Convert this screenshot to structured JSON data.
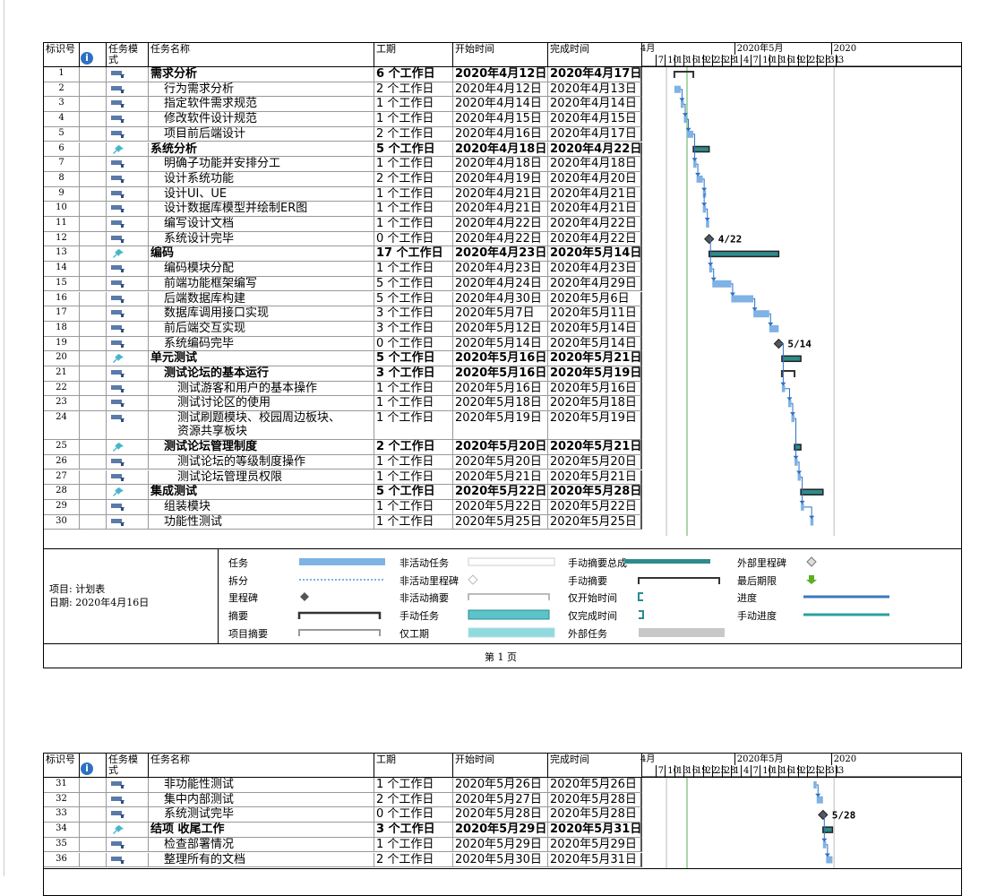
{
  "headers": {
    "id": "标识号",
    "mode": "任务模式",
    "name": "任务名称",
    "duration": "工期",
    "start": "开始时间",
    "finish": "完成时间"
  },
  "timeline": {
    "month_apr": "4月",
    "month_may": "2020年5月",
    "month_next": "2020",
    "days": [
      "7",
      "10",
      "13",
      "16",
      "19",
      "22",
      "25",
      "28",
      "1",
      "4",
      "7",
      "10",
      "13",
      "16",
      "19",
      "22",
      "25",
      "28",
      "31",
      "3"
    ]
  },
  "page1_tasks": [
    {
      "id": "1",
      "indent": 0,
      "bold": true,
      "mode": "auto",
      "name": "需求分析",
      "dur": "6 个工作日",
      "start": "2020年4月12日",
      "end": "2020年4月17日"
    },
    {
      "id": "2",
      "indent": 1,
      "bold": false,
      "mode": "auto",
      "name": "行为需求分析",
      "dur": "2 个工作日",
      "start": "2020年4月12日",
      "end": "2020年4月13日"
    },
    {
      "id": "3",
      "indent": 1,
      "bold": false,
      "mode": "auto",
      "name": "指定软件需求规范",
      "dur": "1 个工作日",
      "start": "2020年4月14日",
      "end": "2020年4月14日"
    },
    {
      "id": "4",
      "indent": 1,
      "bold": false,
      "mode": "auto",
      "name": "修改软件设计规范",
      "dur": "1 个工作日",
      "start": "2020年4月15日",
      "end": "2020年4月15日"
    },
    {
      "id": "5",
      "indent": 1,
      "bold": false,
      "mode": "auto",
      "name": "项目前后端设计",
      "dur": "2 个工作日",
      "start": "2020年4月16日",
      "end": "2020年4月17日"
    },
    {
      "id": "6",
      "indent": 0,
      "bold": true,
      "mode": "manual",
      "name": "系统分析",
      "dur": "5 个工作日",
      "start": "2020年4月18日",
      "end": "2020年4月22日"
    },
    {
      "id": "7",
      "indent": 1,
      "bold": false,
      "mode": "auto",
      "name": "明确子功能并安排分工",
      "dur": "1 个工作日",
      "start": "2020年4月18日",
      "end": "2020年4月18日"
    },
    {
      "id": "8",
      "indent": 1,
      "bold": false,
      "mode": "auto",
      "name": "设计系统功能",
      "dur": "2 个工作日",
      "start": "2020年4月19日",
      "end": "2020年4月20日"
    },
    {
      "id": "9",
      "indent": 1,
      "bold": false,
      "mode": "auto",
      "name": "设计UI、UE",
      "dur": "1 个工作日",
      "start": "2020年4月21日",
      "end": "2020年4月21日"
    },
    {
      "id": "10",
      "indent": 1,
      "bold": false,
      "mode": "auto",
      "name": "设计数据库模型并绘制ER图",
      "dur": "1 个工作日",
      "start": "2020年4月21日",
      "end": "2020年4月21日"
    },
    {
      "id": "11",
      "indent": 1,
      "bold": false,
      "mode": "auto",
      "name": "编写设计文档",
      "dur": "1 个工作日",
      "start": "2020年4月22日",
      "end": "2020年4月22日"
    },
    {
      "id": "12",
      "indent": 1,
      "bold": false,
      "mode": "auto",
      "name": "系统设计完毕",
      "dur": "0 个工作日",
      "start": "2020年4月22日",
      "end": "2020年4月22日"
    },
    {
      "id": "13",
      "indent": 0,
      "bold": true,
      "mode": "manual",
      "name": "编码",
      "dur": "17 个工作日",
      "start": "2020年4月23日",
      "end": "2020年5月14日"
    },
    {
      "id": "14",
      "indent": 1,
      "bold": false,
      "mode": "auto",
      "name": "编码模块分配",
      "dur": "1 个工作日",
      "start": "2020年4月23日",
      "end": "2020年4月23日"
    },
    {
      "id": "15",
      "indent": 1,
      "bold": false,
      "mode": "auto",
      "name": "前端功能框架编写",
      "dur": "5 个工作日",
      "start": "2020年4月24日",
      "end": "2020年4月29日"
    },
    {
      "id": "16",
      "indent": 1,
      "bold": false,
      "mode": "auto",
      "name": "后端数据库构建",
      "dur": "5 个工作日",
      "start": "2020年4月30日",
      "end": "2020年5月6日"
    },
    {
      "id": "17",
      "indent": 1,
      "bold": false,
      "mode": "auto",
      "name": "数据库调用接口实现",
      "dur": "3 个工作日",
      "start": "2020年5月7日",
      "end": "2020年5月11日"
    },
    {
      "id": "18",
      "indent": 1,
      "bold": false,
      "mode": "auto",
      "name": "前后端交互实现",
      "dur": "3 个工作日",
      "start": "2020年5月12日",
      "end": "2020年5月14日"
    },
    {
      "id": "19",
      "indent": 1,
      "bold": false,
      "mode": "auto",
      "name": "系统编码完毕",
      "dur": "0 个工作日",
      "start": "2020年5月14日",
      "end": "2020年5月14日"
    },
    {
      "id": "20",
      "indent": 0,
      "bold": true,
      "mode": "manual",
      "name": "单元测试",
      "dur": "5 个工作日",
      "start": "2020年5月16日",
      "end": "2020年5月21日"
    },
    {
      "id": "21",
      "indent": 1,
      "bold": true,
      "mode": "auto",
      "name": "测试论坛的基本运行",
      "dur": "3 个工作日",
      "start": "2020年5月16日",
      "end": "2020年5月19日"
    },
    {
      "id": "22",
      "indent": 2,
      "bold": false,
      "mode": "auto",
      "name": "测试游客和用户的基本操作",
      "dur": "1 个工作日",
      "start": "2020年5月16日",
      "end": "2020年5月16日"
    },
    {
      "id": "23",
      "indent": 2,
      "bold": false,
      "mode": "auto",
      "name": "测试讨论区的使用",
      "dur": "1 个工作日",
      "start": "2020年5月18日",
      "end": "2020年5月18日"
    },
    {
      "id": "24",
      "indent": 2,
      "bold": false,
      "mode": "auto",
      "name": "测试刷题模块、校园周边板块、",
      "name2": "资源共享板块",
      "dur": "1 个工作日",
      "start": "2020年5月19日",
      "end": "2020年5月19日"
    },
    {
      "id": "25",
      "indent": 1,
      "bold": true,
      "mode": "manual",
      "name": "测试论坛管理制度",
      "dur": "2 个工作日",
      "start": "2020年5月20日",
      "end": "2020年5月21日"
    },
    {
      "id": "26",
      "indent": 2,
      "bold": false,
      "mode": "auto",
      "name": "测试论坛的等级制度操作",
      "dur": "1 个工作日",
      "start": "2020年5月20日",
      "end": "2020年5月20日"
    },
    {
      "id": "27",
      "indent": 2,
      "bold": false,
      "mode": "auto",
      "name": "测试论坛管理员权限",
      "dur": "1 个工作日",
      "start": "2020年5月21日",
      "end": "2020年5月21日"
    },
    {
      "id": "28",
      "indent": 0,
      "bold": true,
      "mode": "manual",
      "name": "集成测试",
      "dur": "5 个工作日",
      "start": "2020年5月22日",
      "end": "2020年5月28日"
    },
    {
      "id": "29",
      "indent": 1,
      "bold": false,
      "mode": "auto",
      "name": "组装模块",
      "dur": "1 个工作日",
      "start": "2020年5月22日",
      "end": "2020年5月22日"
    },
    {
      "id": "30",
      "indent": 1,
      "bold": false,
      "mode": "auto",
      "name": "功能性测试",
      "dur": "1 个工作日",
      "start": "2020年5月25日",
      "end": "2020年5月25日"
    }
  ],
  "page2_tasks": [
    {
      "id": "31",
      "indent": 1,
      "bold": false,
      "mode": "auto",
      "name": "非功能性测试",
      "dur": "1 个工作日",
      "start": "2020年5月26日",
      "end": "2020年5月26日"
    },
    {
      "id": "32",
      "indent": 1,
      "bold": false,
      "mode": "auto",
      "name": "集中内部测试",
      "dur": "2 个工作日",
      "start": "2020年5月27日",
      "end": "2020年5月28日"
    },
    {
      "id": "33",
      "indent": 1,
      "bold": false,
      "mode": "auto",
      "name": "系统测试完毕",
      "dur": "0 个工作日",
      "start": "2020年5月28日",
      "end": "2020年5月28日"
    },
    {
      "id": "34",
      "indent": 0,
      "bold": true,
      "mode": "manual",
      "name": "结项 收尾工作",
      "dur": "3 个工作日",
      "start": "2020年5月29日",
      "end": "2020年5月31日"
    },
    {
      "id": "35",
      "indent": 1,
      "bold": false,
      "mode": "auto",
      "name": "检查部署情况",
      "dur": "1 个工作日",
      "start": "2020年5月29日",
      "end": "2020年5月29日"
    },
    {
      "id": "36",
      "indent": 1,
      "bold": false,
      "mode": "auto",
      "name": "整理所有的文档",
      "dur": "2 个工作日",
      "start": "2020年5月30日",
      "end": "2020年5月31日"
    }
  ],
  "milestones": {
    "m12": "4/22",
    "m19": "5/14",
    "m33": "5/28"
  },
  "legend": {
    "c1": [
      "任务",
      "拆分",
      "里程碑",
      "摘要",
      "项目摘要"
    ],
    "c2": [
      "非活动任务",
      "非活动里程碑",
      "非活动摘要",
      "手动任务",
      "仅工期"
    ],
    "c3": [
      "手动摘要总成",
      "手动摘要",
      "仅开始时间",
      "仅完成时间",
      "外部任务"
    ],
    "c4": [
      "外部里程碑",
      "最后期限",
      "进度",
      "手动进度"
    ]
  },
  "project": {
    "project_label": "项目: 计划表",
    "date_label": "日期: 2020年4月16日"
  },
  "footer": {
    "page": "第 1 页"
  },
  "colors": {
    "task": "#7fb2e5",
    "summary": "#2e8b8b",
    "manual_task": "#5bc4c8",
    "grid_green": "#8fc98f",
    "arrow": "#2e70c4"
  }
}
